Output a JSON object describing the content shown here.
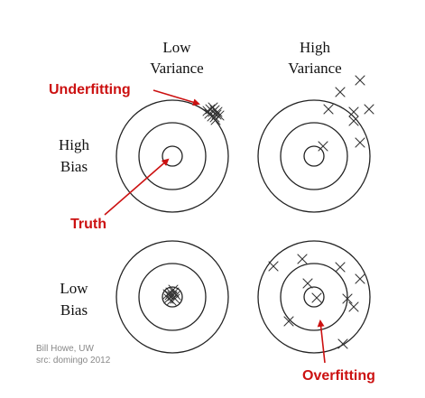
{
  "headers": {
    "low_variance": [
      "Low",
      "Variance"
    ],
    "high_variance": [
      "High",
      "Variance"
    ],
    "high_bias": [
      "High",
      "Bias"
    ],
    "low_bias": [
      "Low",
      "Bias"
    ]
  },
  "annotations": {
    "underfitting": "Underfitting",
    "truth": "Truth",
    "overfitting": "Overfitting"
  },
  "credit": {
    "author": "Bill Howe, UW",
    "source": "src: domingo 2012"
  },
  "colors": {
    "annotation": "#cc1111",
    "credit": "#888888",
    "ink": "#222222"
  },
  "icons": {
    "target": "bullseye-target",
    "sample": "x-mark"
  }
}
